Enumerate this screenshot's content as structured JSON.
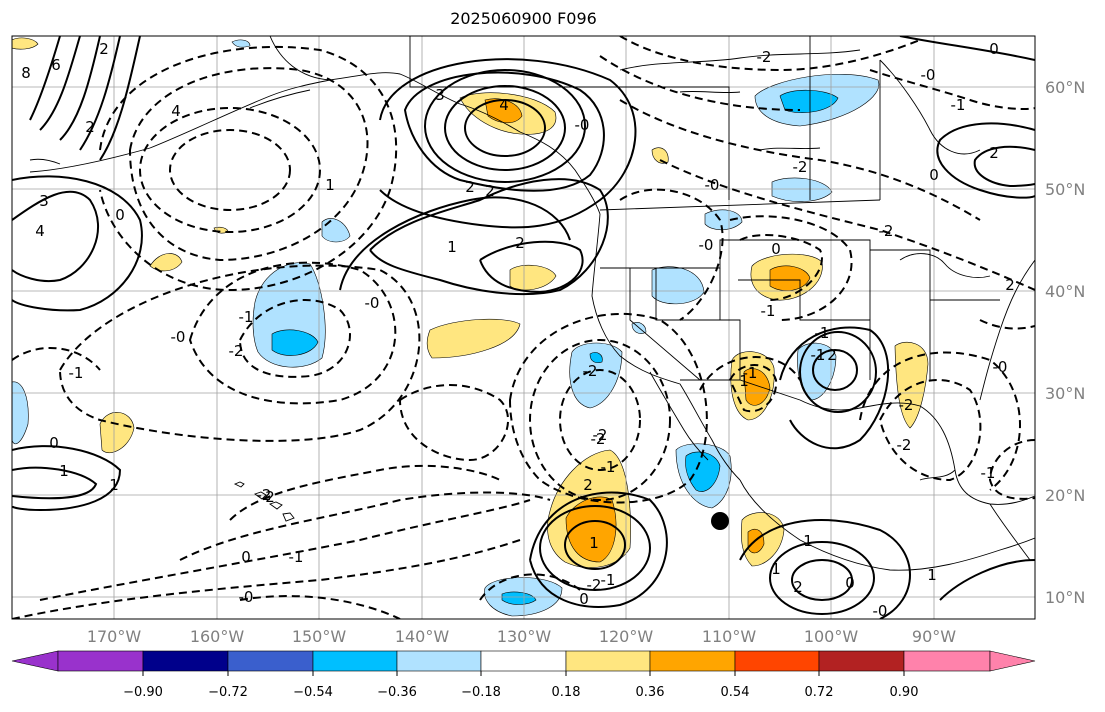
{
  "title": "2025060900 F096",
  "lat_labels": [
    "60°N",
    "50°N",
    "40°N",
    "30°N",
    "20°N",
    "10°N"
  ],
  "lon_labels": [
    "170°W",
    "160°W",
    "150°W",
    "140°W",
    "130°W",
    "120°W",
    "110°W",
    "100°W",
    "90°W"
  ],
  "colorbar": {
    "ticks": [
      "−0.90",
      "−0.72",
      "−0.54",
      "−0.36",
      "−0.18",
      "0.18",
      "0.36",
      "0.54",
      "0.72",
      "0.90"
    ],
    "colors": [
      "#9932cc",
      "#00008b",
      "#3a5fcd",
      "#00bfff",
      "#b0e2ff",
      "#ffffff",
      "#ffe680",
      "#ffa500",
      "#ff4500",
      "#b22222",
      "#ff82ab"
    ]
  },
  "contour_labels": [
    "8",
    "6",
    "2",
    "2",
    "4",
    "3",
    "4",
    "0",
    "4",
    "3",
    "2",
    "2",
    "1",
    "1",
    "2",
    "-1",
    "-2",
    "-0",
    "-1",
    "-0",
    "0",
    "1",
    "2",
    "-2",
    "-2",
    "-2",
    "-1",
    "-1",
    "-0",
    "-0",
    "2",
    "-1",
    "-2",
    "1",
    "1",
    "2",
    "0",
    "-0",
    "-2",
    "-0",
    "-1",
    "0",
    "-2",
    "2",
    "0",
    "-2",
    "-1",
    "0",
    "-0",
    "0",
    "1",
    "-0",
    "2",
    "-2",
    "1",
    "2",
    "-1",
    "-1",
    "1",
    "0",
    "-1",
    "1",
    "-2",
    "-0",
    "-1",
    "-2"
  ],
  "colors": {
    "contour": "#000000",
    "grid": "#a0a0a0",
    "coast": "#000000",
    "marker": "#000000"
  }
}
